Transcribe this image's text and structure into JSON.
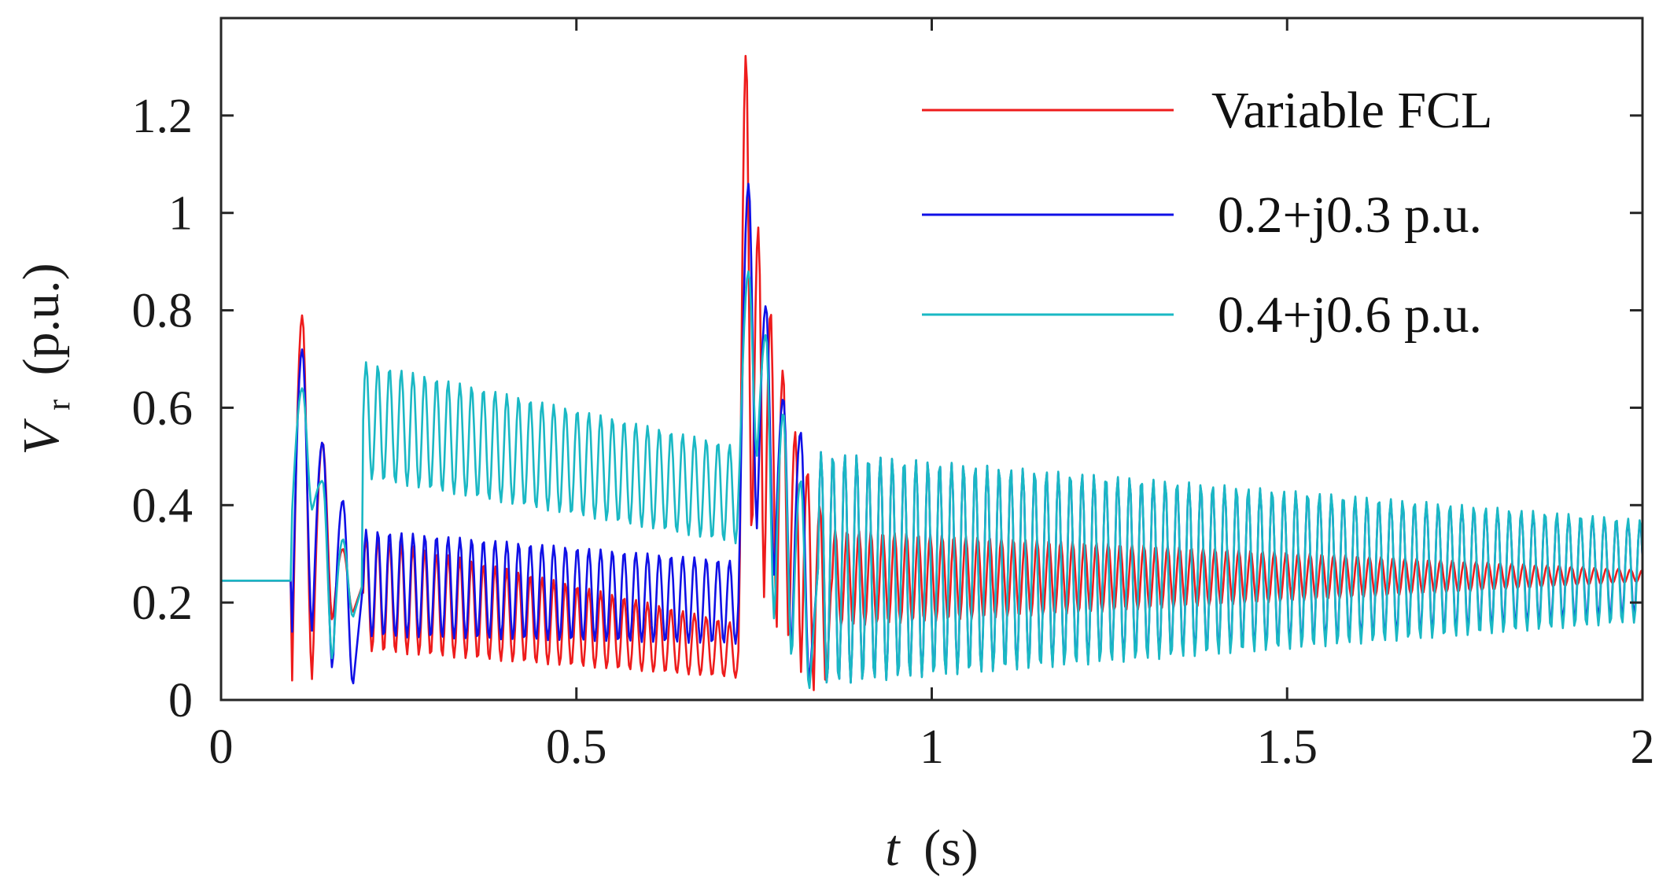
{
  "chart_data": {
    "type": "line",
    "title": "",
    "xlabel": {
      "var": "t",
      "unit": "(s)"
    },
    "ylabel": {
      "var": "V",
      "sub": "r",
      "unit": "(p.u.)"
    },
    "xlim": [
      0,
      2
    ],
    "ylim": [
      0,
      1.4
    ],
    "xticks": [
      0,
      0.5,
      1,
      1.5,
      2
    ],
    "xtick_labels": [
      "0",
      "0.5",
      "1",
      "1.5",
      "2"
    ],
    "yticks": [
      0,
      0.2,
      0.4,
      0.6,
      0.8,
      1,
      1.2
    ],
    "ytick_labels": [
      "0",
      "0.2",
      "0.4",
      "0.6",
      "0.8",
      "1",
      "1.2"
    ],
    "grid": false,
    "legend_position": "top-right",
    "sample_interval_s": 0.002,
    "series": [
      {
        "name": "Variable FCL",
        "label": "Variable FCL",
        "color": "#ee1c1c",
        "events": {
          "fault_on": 0.1,
          "fault_clear": 0.733,
          "end": 2.0
        },
        "phases": [
          {
            "t0": 0.0,
            "t1": 0.1,
            "type": "flat",
            "value": 0.245
          },
          {
            "t0": 0.1,
            "t1": 0.2,
            "type": "transient",
            "peaks": [
              0.79,
              0.53,
              0.31
            ],
            "valleys": [
              0.04,
              0.16,
              0.18
            ],
            "end_center": 0.24,
            "period": 0.02
          },
          {
            "t0": 0.2,
            "t1": 0.73,
            "type": "osc",
            "center_start": 0.22,
            "center_end": 0.1,
            "amp_start": 0.12,
            "amp_end": 0.055,
            "period": 0.0165
          },
          {
            "t0": 0.73,
            "t1": 0.86,
            "type": "transient",
            "peaks": [
              1.33,
              0.97,
              0.8,
              0.68,
              0.55,
              0.47,
              0.4
            ],
            "valleys": [
              0.3,
              0.2,
              0.15,
              0.1,
              0.05,
              0.02,
              0.02
            ],
            "end_center": 0.28,
            "period": 0.0185
          },
          {
            "t0": 0.86,
            "t1": 2.0,
            "type": "osc",
            "center_start": 0.25,
            "center_end": 0.255,
            "amp_start": 0.1,
            "amp_end": 0.012,
            "period": 0.0167
          }
        ]
      },
      {
        "name": "0.2+j0.3 p.u.",
        "label": "0.2+j0.3 p.u.",
        "color": "#1010e6",
        "events": {
          "fault_on": 0.1,
          "fault_clear": 0.733,
          "end": 2.0
        },
        "phases": [
          {
            "t0": 0.0,
            "t1": 0.1,
            "type": "flat",
            "value": 0.245
          },
          {
            "t0": 0.1,
            "t1": 0.2,
            "type": "transient",
            "peaks": [
              0.72,
              0.53,
              0.41
            ],
            "valleys": [
              0.14,
              0.06,
              0.03
            ],
            "end_center": 0.24,
            "period": 0.02
          },
          {
            "t0": 0.2,
            "t1": 0.73,
            "type": "osc",
            "center_start": 0.24,
            "center_end": 0.2,
            "amp_start": 0.11,
            "amp_end": 0.085,
            "period": 0.0165
          },
          {
            "t0": 0.73,
            "t1": 0.84,
            "type": "transient",
            "peaks": [
              1.06,
              0.81,
              0.62,
              0.55
            ],
            "valleys": [
              0.35,
              0.25,
              0.1,
              0.04
            ],
            "end_center": 0.27,
            "period": 0.018
          },
          {
            "t0": 0.84,
            "t1": 2.0,
            "type": "osc",
            "center_start": 0.27,
            "center_end": 0.27,
            "amp_start": 0.24,
            "amp_end": 0.095,
            "period": 0.0167
          }
        ]
      },
      {
        "name": "0.4+j0.6 p.u.",
        "label": "0.4+j0.6 p.u.",
        "color": "#1ab8c4",
        "events": {
          "fault_on": 0.1,
          "fault_clear": 0.733,
          "end": 2.0
        },
        "phases": [
          {
            "t0": 0.0,
            "t1": 0.1,
            "type": "flat",
            "value": 0.245
          },
          {
            "t0": 0.1,
            "t1": 0.2,
            "type": "transient",
            "peaks": [
              0.64,
              0.45,
              0.33
            ],
            "valleys": [
              0.39,
              0.08,
              0.17
            ],
            "end_center": 0.24,
            "period": 0.02
          },
          {
            "t0": 0.2,
            "t1": 0.73,
            "type": "osc",
            "center_start": 0.575,
            "center_end": 0.42,
            "amp_start": 0.12,
            "amp_end": 0.1,
            "period": 0.0165
          },
          {
            "t0": 0.73,
            "t1": 0.84,
            "type": "transient",
            "peaks": [
              0.88,
              0.75,
              0.59,
              0.45
            ],
            "valleys": [
              0.5,
              0.16,
              0.08,
              0.02
            ],
            "end_center": 0.27,
            "period": 0.018
          },
          {
            "t0": 0.84,
            "t1": 2.0,
            "type": "osc",
            "center_start": 0.27,
            "center_end": 0.265,
            "amp_start": 0.24,
            "amp_end": 0.105,
            "period": 0.0167
          }
        ]
      }
    ]
  }
}
